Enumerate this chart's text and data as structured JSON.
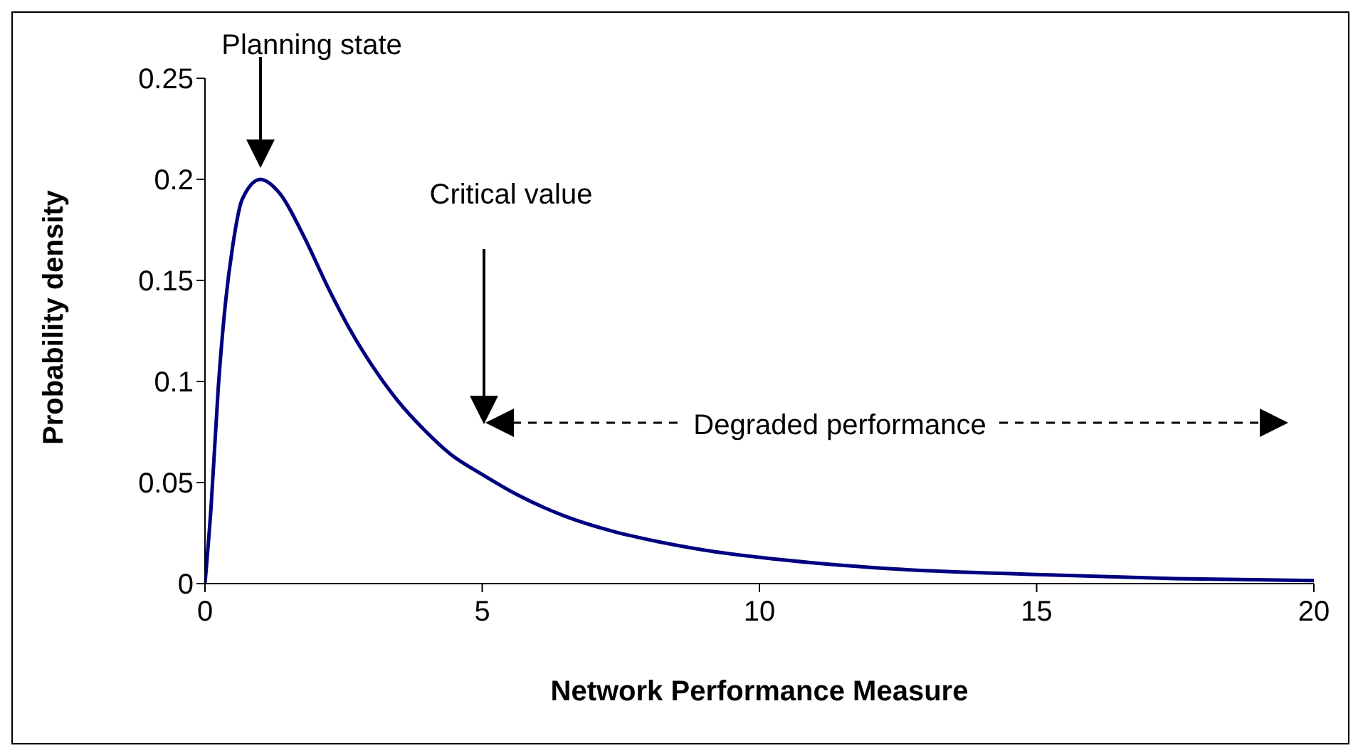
{
  "chart_data": {
    "type": "line",
    "xlabel": "Network Performance Measure",
    "ylabel": "Probability density",
    "x": [
      0,
      0.11,
      0.24,
      0.37,
      0.5,
      0.67,
      1,
      1.35,
      1.78,
      2.21,
      2.63,
      3.06,
      3.49,
      3.92,
      4.43,
      5,
      5.63,
      6.48,
      7.34,
      8.2,
      9.05,
      10,
      12,
      15,
      17.5,
      20
    ],
    "series": [
      {
        "color": "#000080",
        "values": [
          0,
          0.038,
          0.097,
          0.139,
          0.167,
          0.19,
          0.2,
          0.193,
          0.172,
          0.147,
          0.125,
          0.106,
          0.09,
          0.077,
          0.064,
          0.054,
          0.044,
          0.0335,
          0.026,
          0.0206,
          0.0164,
          0.013,
          0.008,
          0.0045,
          0.0025,
          0.0015
        ]
      }
    ],
    "xlim": [
      0,
      20
    ],
    "xticks": [
      0,
      5,
      10,
      15,
      20
    ],
    "ylim": [
      0,
      0.25
    ],
    "yticks": [
      0,
      0.05,
      0.1,
      0.15,
      0.2,
      0.25
    ],
    "grid": false,
    "legend": false,
    "marker": "none",
    "line_style": "solid",
    "annotations": [
      "Planning state",
      "Critical value",
      "Degraded performance"
    ]
  }
}
